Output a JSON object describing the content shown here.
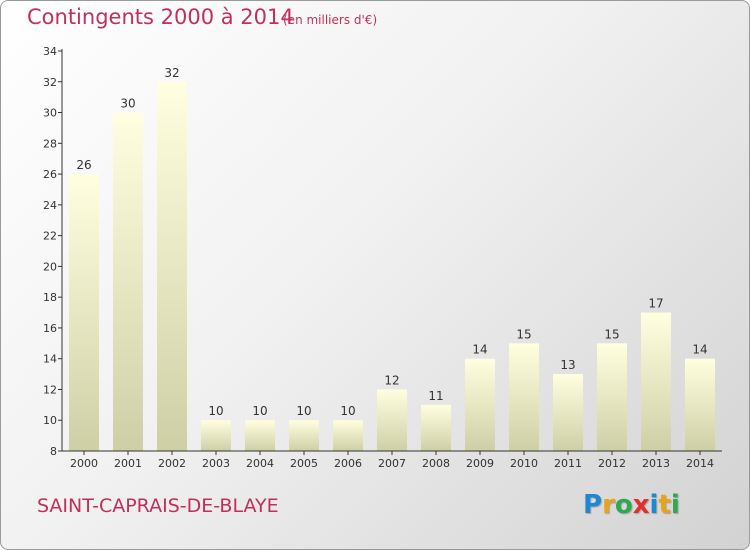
{
  "header": {
    "title": "Contingents 2000 à 2014",
    "subtitle": "(en milliers d'€)"
  },
  "footer": {
    "town": "SAINT-CAPRAIS-DE-BLAYE",
    "logo": [
      "P",
      "r",
      "o",
      "x",
      "i",
      "t",
      "i"
    ],
    "logo_colors": [
      "#1e88d0",
      "#e8a31a",
      "#2fa84f",
      "#e0302b",
      "#1e88d0",
      "#e8a31a",
      "#2fa84f"
    ]
  },
  "colors": {
    "title": "#c0305a",
    "bar_top": "#ffffe0",
    "bar_bottom": "#cfcfa6",
    "axis": "#333333"
  },
  "chart_data": {
    "type": "bar",
    "title": "Contingents 2000 à 2014",
    "categories": [
      "2000",
      "2001",
      "2002",
      "2003",
      "2004",
      "2005",
      "2006",
      "2007",
      "2008",
      "2009",
      "2010",
      "2011",
      "2012",
      "2013",
      "2014"
    ],
    "values": [
      26,
      30,
      32,
      10,
      10,
      10,
      10,
      12,
      11,
      14,
      15,
      13,
      15,
      17,
      14
    ],
    "ylim": [
      8,
      34
    ],
    "yticks": [
      8,
      10,
      12,
      14,
      16,
      18,
      20,
      22,
      24,
      26,
      28,
      30,
      32,
      34
    ],
    "grid": false,
    "xlabel": "",
    "ylabel": ""
  }
}
